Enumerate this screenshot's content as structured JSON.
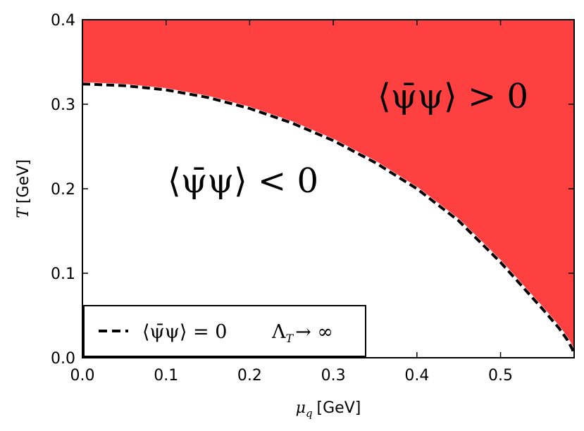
{
  "chart_data": {
    "type": "area",
    "xlabel_symbol": "μ",
    "xlabel_sub": "q",
    "xlabel_unit": "[GeV]",
    "ylabel_symbol": "T",
    "ylabel_unit": "[GeV]",
    "xlim": [
      0.0,
      0.588
    ],
    "ylim": [
      0.0,
      0.4
    ],
    "xticks": [
      "0.0",
      "0.1",
      "0.2",
      "0.3",
      "0.4",
      "0.5"
    ],
    "yticks": [
      "0.0",
      "0.1",
      "0.2",
      "0.3",
      "0.4"
    ],
    "fill_color": "#ff4040",
    "series": [
      {
        "style": "dashed",
        "color": "#000000",
        "x": [
          0.0,
          0.05,
          0.1,
          0.15,
          0.2,
          0.25,
          0.3,
          0.35,
          0.4,
          0.45,
          0.5,
          0.53,
          0.55,
          0.57,
          0.58,
          0.586,
          0.588
        ],
        "y": [
          0.324,
          0.322,
          0.317,
          0.308,
          0.295,
          0.278,
          0.257,
          0.231,
          0.2,
          0.162,
          0.113,
          0.08,
          0.058,
          0.035,
          0.021,
          0.01,
          0.003
        ]
      }
    ],
    "annotations": [
      {
        "region": "above",
        "text": "⟨ψ̄ψ⟩ > 0"
      },
      {
        "region": "below",
        "text": "⟨ψ̄ψ⟩ < 0"
      }
    ],
    "legend": {
      "placement": "bottom-left",
      "entries": [
        {
          "label": "⟨ψ̄ψ⟩ = 0",
          "condition_symbol": "Λ",
          "condition_sub": "T",
          "condition_rest": "→ ∞"
        }
      ]
    }
  }
}
